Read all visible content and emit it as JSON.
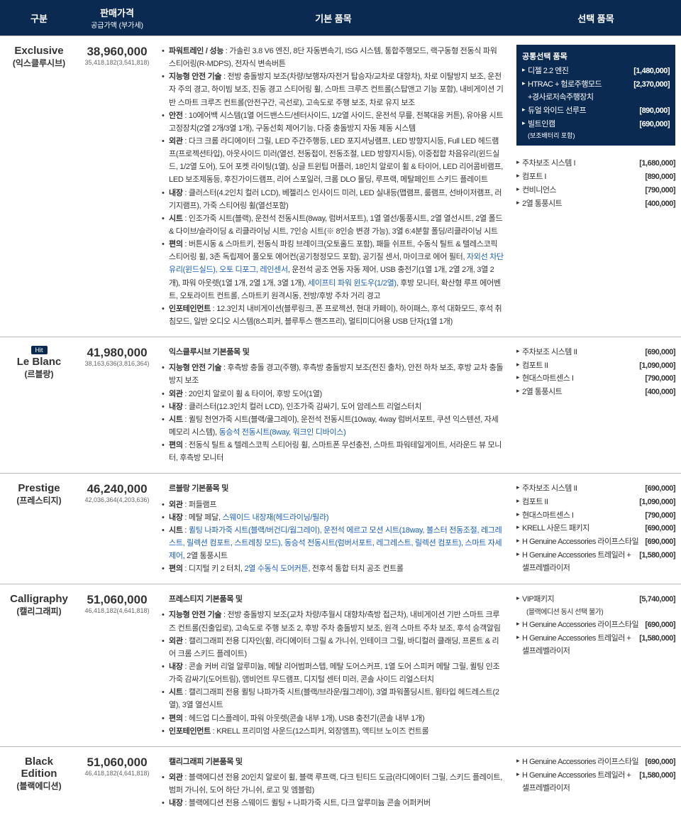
{
  "header": {
    "col0": "구분",
    "col1": "판매가격",
    "col1sub": "공급가액 (부가세)",
    "col2": "기본 품목",
    "col3": "선택 품목"
  },
  "commonOptions": {
    "title": "공통선택 품목",
    "items": [
      {
        "name": "디젤 2.2 엔진",
        "price": "[1,480,000]"
      },
      {
        "name": "HTRAC + 험로주행모드\n+경사로저속주행장치",
        "price": "[2,370,000]"
      },
      {
        "name": "듀얼 와이드 선루프",
        "price": "[890,000]"
      },
      {
        "name": "빌트인캠",
        "price": "[690,000]"
      }
    ],
    "note": "(보조배터리 포함)"
  },
  "trims": [
    {
      "hit": false,
      "en": "Exclusive",
      "ko": "(익스클루시브)",
      "price": "38,960,000",
      "priceSub": "35,418,182(3,541,818)",
      "specs": [
        {
          "label": "파워트레인 / 성능",
          "text": " : 가솔린 3.8 V6 엔진, 8단 자동변속기, ISG 시스템, 통합주행모드, 랙구동형 전동식 파워 스티어링(R-MDPS), 전자식 변속버튼"
        },
        {
          "label": "지능형 안전 기술",
          "text": " : 전방 충돌방지 보조(차량/보행자/자전거 탑승자/교차로 대향차), 차로 이탈방지 보조, 운전자 주의 경고, 하이빔 보조, 진동 경고 스티어링 휠, 스마트 크루즈 컨트롤(스탑앤고 기능 포함), 내비게이션 기반 스마트 크루즈 컨트롤(안전구간, 곡선로), 고속도로 주행 보조, 차로 유지 보조"
        },
        {
          "label": "안전",
          "text": " : 10에어백 시스템(1열 어드밴스드/센터사이드, 1/2열 사이드, 운전석 무릎, 전복대응 커튼), 유아용 시트 고정장치(2열 2개/3열 1개), 구동선회 제어기능, 다중 충돌방지 자동 제동 시스템"
        },
        {
          "label": "외관",
          "text": " : 다크 크롬 라디에이터 그릴, LED 주간주행등, LED 포지셔닝램프, LED 방향지시등, Full LED 헤드램프(프로젝션타입), 아웃사이드 미러(열선, 전동접이, 전동조절, LED 방향지시등), 이중접합 차음유리(윈드실드, 1/2열 도어), 도어 포켓 라이팅(1열), 싱글 트윈팁 머플러, 18인치 알로이 휠 & 타이어, LED 리어콤비램프, LED 보조제동등, 후진가이드램프, 리어 스포일러, 크롬 DLO 몰딩, 루프랙, 메탈페인트 스키드 플레이트"
        },
        {
          "label": "내장",
          "text": " : 클러스터(4.2인치 컬러 LCD), 베젤리스 인사이드 미러, LED 실내등(맵램프, 룸램프, 선바이저램프, 러기지램프), 가죽 스티어링 휠(열선포함)"
        },
        {
          "label": "시트",
          "text": " : 인조가죽 시트(블랙), 운전석 전동시트(8way, 럼버서포트), 1열 열선/통풍시트, 2열 열선시트, 2열 폴드 & 다이브/슬라이딩 & 리클라이닝 시트, 7인승 시트(※ 8인승 변경 가능), 3열 6:4분할 폴딩/리클라이닝 시트"
        },
        {
          "label": "편의",
          "text": " : 버튼시동 & 스마트키, 전동식 파킹 브레이크(오토홀드 포함), 패들 쉬프트, 수동식 틸트 & 텔레스코픽 스티어링 휠, 3존 독립제어 풀오토 에어컨(공기청정모드 포함), 공기질 센서, 마이크로 에어 필터, <span class=\"blue\">자외선 차단 유리(윈드실드), 오토 디포그, 레인센서</span>, 운전석 공조 연동 자동 제어, USB 충전기(1열 1개, 2열 2개, 3열 2개), 파워 아웃렛(1열 1개, 2열 1개, 3열 1개), <span class=\"blue\">세이프티 파워 윈도우(1/2열)</span>, 후방 모니터, 확산형 루프 에어벤트, 오토라이트 컨트롤, 스마트키 원격시동, 전방/후방 주차 거리 경고"
        },
        {
          "label": "인포테인먼트",
          "text": " : 12.3인치 내비게이션(블루링크, 폰 프로젝션, 현대 카페이), 하이패스, 후석 대화모드, 후석 취침모드, 일반 오디오 시스템(8스피커, 블루투스 핸즈프리), 멀티미디어용 USB 단자(1열 1개)"
        }
      ],
      "options": [
        {
          "name": "주차보조 시스템 I",
          "price": "[1,680,000]"
        },
        {
          "name": "컴포트 I",
          "price": "[890,000]"
        },
        {
          "name": "컨비니언스",
          "price": "[790,000]"
        },
        {
          "name": "2열 통풍시트",
          "price": "[400,000]"
        }
      ]
    },
    {
      "hit": true,
      "en": "Le Blanc",
      "ko": "(르블랑)",
      "price": "41,980,000",
      "priceSub": "38,163,636(3,816,364)",
      "specs": [
        {
          "label": "",
          "heading": true,
          "text": "익스클루시브 기본품목 및"
        },
        {
          "label": "지능형 안전 기술",
          "text": " : 후측방 충돌 경고(주행), 후측방 충돌방지 보조(전진 출차), 안전 하차 보조, 후방 교차 충돌방지 보조"
        },
        {
          "label": "외관",
          "text": " : 20인치 알로이 휠 & 타이어, 후방 도어(1열)"
        },
        {
          "label": "내장",
          "text": " : 클러스터(12.3인치 컬러 LCD), 인조가죽 감싸기, 도어 암레스트 리얼스터치"
        },
        {
          "label": "시트",
          "text": " : 퀼팅 천연가죽 시트(블랙/쿨그레이), 운전석 전동시트(10way, 4way 럼버서포트, 쿠션 익스텐션, 자세 메모리 시스템), <span class=\"blue\">동승석 전동시트(8way, 워크인 디바이스)</span>"
        },
        {
          "label": "편의",
          "text": " : 전동식 틸트 & 텔레스코픽 스티어링 휠, 스마트폰 무선충전, 스마트 파워테일게이트, 서라운드 뷰 모니터, 후측방 모니터"
        }
      ],
      "options": [
        {
          "name": "주차보조 시스템 II",
          "price": "[690,000]"
        },
        {
          "name": "컴포트 II",
          "price": "[1,090,000]"
        },
        {
          "name": "현대스마트센스 I",
          "price": "[790,000]"
        },
        {
          "name": "2열 통풍시트",
          "price": "[400,000]"
        }
      ]
    },
    {
      "hit": false,
      "en": "Prestige",
      "ko": "(프레스티지)",
      "price": "46,240,000",
      "priceSub": "42,036,364(4,203,636)",
      "specs": [
        {
          "label": "",
          "heading": true,
          "text": "르블랑 기본품목 및"
        },
        {
          "label": "외관",
          "text": " : 퍼들램프"
        },
        {
          "label": "내장",
          "text": " : 메탈 페달, <span class=\"blue\">스웨이드 내장재(헤드라이닝/필라)</span>"
        },
        {
          "label": "시트",
          "text": " : <span class=\"blue\">퀼팅 나파가죽 시트(블랙/버건디/웜그레이), 운전석 에르고 모션 시트(18way, 볼스터 전동조절, 레그레스트, 릴렉션 컴포트, 스트레칭 모드), 동승석 전동시트(럼버서포트, 레그레스트, 릴렉션 컴포트), 스마트 자세제어</span>, 2열 통풍시트"
        },
        {
          "label": "편의",
          "text": " : 디지털 키 2 터치, <span class=\"blue\">2열 수동식 도어커튼</span>, 전후석 통합 터치 공조 컨트롤"
        }
      ],
      "options": [
        {
          "name": "주차보조 시스템 II",
          "price": "[690,000]"
        },
        {
          "name": "컴포트 II",
          "price": "[1,090,000]"
        },
        {
          "name": "현대스마트센스 I",
          "price": "[790,000]"
        },
        {
          "name": "KRELL 사운드 패키지",
          "price": "[690,000]"
        },
        {
          "name": "H Genuine Accessories 라이프스타일",
          "price": "[690,000]"
        },
        {
          "name": "H Genuine Accessories 트레일러 + 셀프레벨라이저",
          "price": "[1,580,000]"
        }
      ]
    },
    {
      "hit": false,
      "en": "Calligraphy",
      "ko": "(캘리그래피)",
      "price": "51,060,000",
      "priceSub": "46,418,182(4,641,818)",
      "specs": [
        {
          "label": "",
          "heading": true,
          "text": "프레스티지 기본품목 및"
        },
        {
          "label": "지능형 안전 기술",
          "text": " : 전방 충돌방지 보조(교차 차량/추월시 대향차/측방 접근차), 내비게이션 기반 스마트 크루즈 컨트롤(진출입로), 고속도로 주행 보조 2, 후방 주차 충돌방지 보조, 원격 스마트 주차 보조, 후석 승객알림"
        },
        {
          "label": "외관",
          "text": " : 캘리그래피 전용 디자인(휠, 라디에이터 그릴 & 가니쉬, 인테이크 그릴, 바디컬러 클래딩, 프론트 & 리어 크롬 스키드 플레이트)"
        },
        {
          "label": "내장",
          "text": " : 콘솔 커버 리얼 알루미늄, 메탈 리어범퍼스텝, 메탈 도어스커프, 1열 도어 스피커 메탈 그릴, 퀼팅 인조가죽 감싸기(도어트림), 앰비언트 무드램프, 디지털 센터 미러, 콘솔 사이드 리얼스터치"
        },
        {
          "label": "시트",
          "text": " : 캘리그래피 전용 퀼팅 나파가죽 시트(블랙/브라운/웜그레이), 3열 파워폴딩시트, 윙타입 헤드레스트(2열), 3열 열선시트"
        },
        {
          "label": "편의",
          "text": " : 헤드업 디스플레이, 파워 아웃렛(콘솔 내부 1개), USB 충전기(콘솔 내부 1개)"
        },
        {
          "label": "인포테인먼트",
          "text": " : KRELL 프리미엄 사운드(12스피커, 외장앰프), 액티브 노이즈 컨트롤"
        }
      ],
      "options": [
        {
          "name": "VIP패키지",
          "price": "[5,740,000]",
          "sub": "(블랙에디션 동시 선택 불가)"
        },
        {
          "name": "H Genuine Accessories 라이프스타일",
          "price": "[690,000]"
        },
        {
          "name": "H Genuine Accessories 트레일러 + 셀프레벨라이저",
          "price": "[1,580,000]"
        }
      ]
    },
    {
      "hit": false,
      "en": "Black Edition",
      "ko": "(블랙에디션)",
      "price": "51,060,000",
      "priceSub": "46,418,182(4,641,818)",
      "specs": [
        {
          "label": "",
          "heading": true,
          "text": "캘리그래피 기본품목 및"
        },
        {
          "label": "외관",
          "text": " : 블랙에디션 전용 20인치 알로이 휠, 블랙 루프랙, 다크 틴티드 도금(라디에이터 그릴, 스키드 플레이트, 범퍼 가니쉬, 도어 하단 가니쉬, 로고 및 엠블럼)"
        },
        {
          "label": "내장",
          "text": " : 블랙에디션 전용 스웨이드 퀼팅 + 나파가죽 시트, 다크 알루미늄 콘솔 어퍼커버"
        }
      ],
      "options": [
        {
          "name": "H Genuine Accessories 라이프스타일",
          "price": "[690,000]"
        },
        {
          "name": "H Genuine Accessories 트레일러 + 셀프레벨라이저",
          "price": "[1,580,000]"
        }
      ]
    }
  ]
}
